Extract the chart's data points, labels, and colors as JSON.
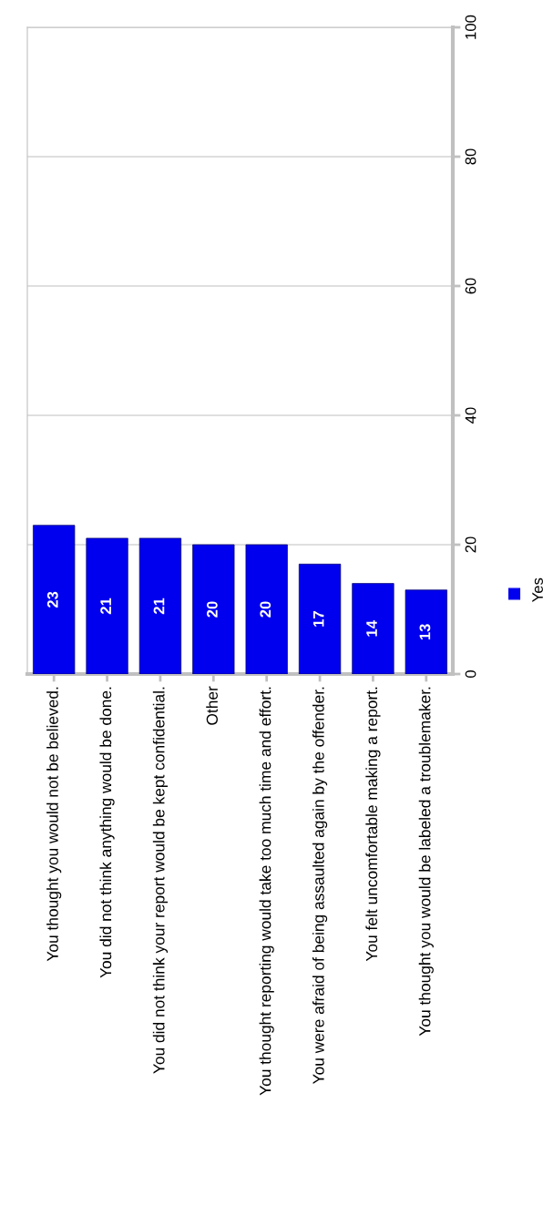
{
  "chart_data": {
    "type": "bar",
    "categories": [
      "You thought you would not be believed.",
      "You did not think anything would be done.",
      "You did not think your report would be kept confidential.",
      "Other",
      "You thought reporting would take too much time and effort.",
      "You were afraid of being assaulted again by the offender.",
      "You felt uncomfortable making a report.",
      "You thought you would be labeled a troublemaker."
    ],
    "series": [
      {
        "name": "Yes",
        "color": "#0000ee",
        "values": [
          23,
          21,
          21,
          20,
          20,
          17,
          14,
          13
        ]
      }
    ],
    "ylim": [
      0,
      100
    ],
    "yticks": [
      0,
      20,
      40,
      60,
      80,
      100
    ],
    "grid": "y",
    "legend": "right",
    "data_labels": true
  }
}
